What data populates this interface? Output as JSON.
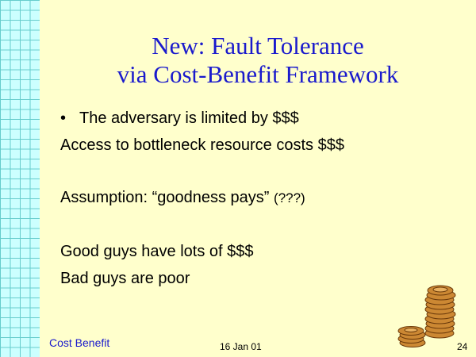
{
  "slide": {
    "title_line_1": "New: Fault Tolerance",
    "title_line_2": "via  Cost-Benefit Framework",
    "bullet_1": "The adversary is limited by $$$",
    "bullet_symbol": "•",
    "line_2": "Access to bottleneck resource costs $$$",
    "line_3_main": "Assumption: “goodness pays” ",
    "line_3_paren": "(???)",
    "line_4": "Good guys have lots of $$$",
    "line_5": "Bad guys are poor"
  },
  "footer": {
    "label": "Cost Benefit",
    "date": "16 Jan 01",
    "page_number": "24"
  },
  "colors": {
    "background": "#ffffcc",
    "title": "#1a1acc",
    "grid_fill": "#ccffff",
    "grid_line": "#66cccc",
    "coin": "#cc8833"
  },
  "icons": {
    "coins": "coin-stack-icon"
  }
}
